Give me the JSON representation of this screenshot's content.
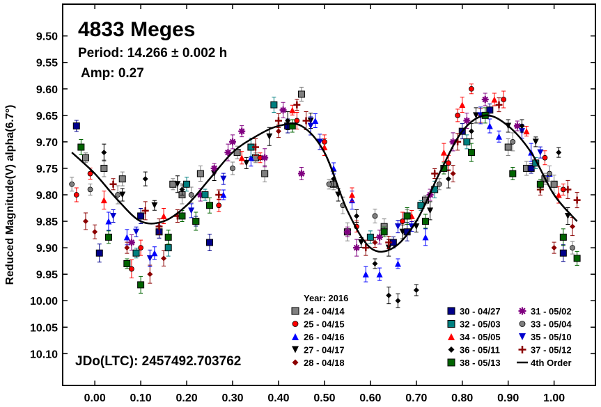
{
  "chart_data": {
    "type": "scatter",
    "title": "4833 Meges",
    "period_text": "Period: 14.266 ± 0.002 h",
    "amp_text": "Amp: 0.27",
    "jdo_text": "JDo(LTC): 2457492.703762",
    "legend_title": "Year: 2016",
    "ylabel": "Reduced Magnitude(V) alpha(6.7°)",
    "xlabel": "",
    "xlim": [
      -0.07,
      1.09
    ],
    "ylim": [
      10.16,
      9.44
    ],
    "y_inverted": true,
    "grid": false,
    "legend_placement": "bottom",
    "x_ticks": [
      "0.00",
      "0.10",
      "0.20",
      "0.30",
      "0.40",
      "0.50",
      "0.60",
      "0.70",
      "0.80",
      "0.90",
      "1.00"
    ],
    "x_tick_values": [
      0.0,
      0.1,
      0.2,
      0.3,
      0.4,
      0.5,
      0.6,
      0.7,
      0.8,
      0.9,
      1.0
    ],
    "y_ticks": [
      "9.50",
      "9.55",
      "9.60",
      "9.65",
      "9.70",
      "9.75",
      "9.80",
      "9.85",
      "9.90",
      "9.95",
      "10.00",
      "10.05",
      "10.10"
    ],
    "y_tick_values": [
      9.5,
      9.55,
      9.6,
      9.65,
      9.7,
      9.75,
      9.8,
      9.85,
      9.9,
      9.95,
      10.0,
      10.05,
      10.1
    ],
    "fit": {
      "name": "4th Order",
      "color": "#000000",
      "x": [
        -0.05,
        0.0,
        0.05,
        0.1,
        0.15,
        0.2,
        0.25,
        0.3,
        0.35,
        0.4,
        0.45,
        0.5,
        0.55,
        0.6,
        0.65,
        0.7,
        0.75,
        0.8,
        0.85,
        0.9,
        0.95,
        1.0,
        1.05
      ],
      "y": [
        9.72,
        9.76,
        9.81,
        9.85,
        9.85,
        9.82,
        9.77,
        9.72,
        9.69,
        9.67,
        9.67,
        9.72,
        9.83,
        9.9,
        9.9,
        9.85,
        9.76,
        9.68,
        9.65,
        9.67,
        9.72,
        9.8,
        9.85
      ]
    },
    "series": [
      {
        "name": "24 - 04/14",
        "marker": "square",
        "color": "#808080",
        "size": 9,
        "x": [
          -0.02,
          0.02,
          0.06,
          0.17,
          0.19,
          0.23,
          0.31,
          0.35,
          0.37,
          0.45,
          0.52,
          0.55,
          0.63,
          0.68,
          0.72,
          0.9,
          0.94,
          0.98,
          1.0
        ],
        "y": [
          9.73,
          9.75,
          9.77,
          9.78,
          9.8,
          9.76,
          9.72,
          9.73,
          9.76,
          9.61,
          9.78,
          9.87,
          9.86,
          9.84,
          9.81,
          9.71,
          9.75,
          9.77,
          9.78
        ]
      },
      {
        "name": "25 - 04/15",
        "marker": "circle",
        "color": "#ff0000",
        "size": 7,
        "x": [
          -0.04,
          -0.01,
          0.08,
          0.1,
          0.27,
          0.36,
          0.44,
          0.5,
          0.57,
          0.67,
          0.77,
          0.79,
          0.82,
          0.89,
          0.98,
          1.02
        ],
        "y": [
          9.8,
          9.76,
          9.94,
          9.9,
          9.82,
          9.73,
          9.66,
          9.7,
          9.86,
          9.85,
          9.74,
          9.65,
          9.6,
          9.62,
          9.73,
          9.79
        ]
      },
      {
        "name": "26 - 04/16",
        "marker": "triangle-up",
        "color": "#0000ff",
        "size": 9,
        "x": [
          0.03,
          0.07,
          0.13,
          0.28,
          0.34,
          0.48,
          0.52,
          0.56,
          0.59,
          0.62,
          0.66,
          0.72,
          0.86,
          0.88,
          0.95,
          0.99
        ],
        "y": [
          9.85,
          9.88,
          9.91,
          9.8,
          9.73,
          9.66,
          9.75,
          9.81,
          9.95,
          9.95,
          9.93,
          9.88,
          9.67,
          9.69,
          9.72,
          9.76
        ]
      },
      {
        "name": "27 - 04/17",
        "marker": "triangle-down",
        "color": "#000000",
        "size": 9,
        "x": [
          0.06,
          0.13,
          0.18,
          0.26,
          0.33,
          0.38,
          0.47,
          0.53,
          0.58,
          0.64,
          0.67,
          0.7,
          0.73,
          0.83,
          0.9,
          0.96,
          1.03
        ],
        "y": [
          9.8,
          9.82,
          9.78,
          9.76,
          9.74,
          9.69,
          9.66,
          9.8,
          9.89,
          9.9,
          9.87,
          9.86,
          9.83,
          9.65,
          9.67,
          9.7,
          9.84
        ]
      },
      {
        "name": "28 - 04/18",
        "marker": "diamond",
        "color": "#8b0000",
        "size": 8,
        "x": [
          -0.02,
          0.0,
          0.07,
          0.12,
          0.15,
          0.4,
          0.61,
          0.78,
          0.84,
          1.0,
          1.04
        ],
        "y": [
          9.85,
          9.87,
          9.9,
          9.95,
          9.92,
          9.68,
          9.89,
          9.76,
          9.65,
          9.9,
          9.86
        ]
      },
      {
        "name": "30 - 04/27",
        "marker": "square",
        "color": "#00008b",
        "size": 9,
        "x": [
          -0.04,
          0.01,
          0.1,
          0.14,
          0.22,
          0.25,
          0.42,
          0.65,
          0.68,
          0.8,
          0.86,
          0.95,
          1.02
        ],
        "y": [
          9.67,
          9.91,
          9.84,
          9.87,
          9.85,
          9.89,
          9.67,
          9.89,
          9.87,
          9.68,
          9.64,
          9.75,
          9.91
        ]
      },
      {
        "name": "31 - 05/02",
        "marker": "asterisk",
        "color": "#800080",
        "size": 10,
        "x": [
          0.08,
          0.23,
          0.26,
          0.29,
          0.3,
          0.32,
          0.37,
          0.41,
          0.45,
          0.55,
          0.57,
          0.62,
          0.73,
          0.78,
          0.81,
          0.85,
          0.92
        ],
        "y": [
          9.89,
          9.8,
          9.75,
          9.72,
          9.7,
          9.68,
          9.73,
          9.64,
          9.76,
          9.87,
          9.9,
          9.88,
          9.8,
          9.7,
          9.66,
          9.62,
          9.67
        ]
      },
      {
        "name": "32 - 05/03",
        "marker": "square",
        "color": "#008080",
        "size": 9,
        "x": [
          0.09,
          0.16,
          0.2,
          0.24,
          0.34,
          0.39,
          0.6,
          0.71,
          0.74,
          0.81,
          0.96
        ],
        "y": [
          9.91,
          9.9,
          9.78,
          9.8,
          9.71,
          9.63,
          9.88,
          9.82,
          9.79,
          9.7,
          9.74
        ]
      },
      {
        "name": "33 - 05/04",
        "marker": "circle",
        "color": "#808080",
        "size": 7,
        "x": [
          -0.05,
          -0.01,
          0.05,
          0.21,
          0.3,
          0.51,
          0.54,
          0.61,
          0.75,
          0.91,
          0.99,
          1.04
        ],
        "y": [
          9.78,
          9.79,
          9.8,
          9.8,
          9.75,
          9.78,
          9.82,
          9.84,
          9.78,
          9.7,
          9.76,
          9.9
        ]
      },
      {
        "name": "34 - 05/05",
        "marker": "triangle-up",
        "color": "#ff0000",
        "size": 9,
        "x": [
          0.02,
          0.15,
          0.32,
          0.43,
          0.5,
          0.56,
          0.69,
          0.76,
          0.8,
          0.87,
          0.94,
          1.01
        ],
        "y": [
          9.81,
          9.84,
          9.73,
          9.64,
          9.71,
          9.8,
          9.84,
          9.72,
          9.63,
          9.62,
          9.68,
          9.8
        ]
      },
      {
        "name": "35 - 05/10",
        "marker": "triangle-down",
        "color": "#0000cd",
        "size": 9,
        "x": [
          0.04,
          0.09,
          0.12,
          0.21,
          0.28,
          0.47,
          0.49,
          0.66,
          0.69,
          0.84,
          0.93,
          0.97
        ],
        "y": [
          9.84,
          9.87,
          9.92,
          9.83,
          9.77,
          9.67,
          9.7,
          9.86,
          9.86,
          9.65,
          9.68,
          9.72
        ]
      },
      {
        "name": "36 - 05/11",
        "marker": "diamond",
        "color": "#000000",
        "size": 8,
        "x": [
          0.02,
          0.11,
          0.19,
          0.42,
          0.52,
          0.57,
          0.61,
          0.64,
          0.66,
          0.7,
          0.77,
          0.82,
          0.93,
          1.01
        ],
        "y": [
          9.72,
          9.77,
          9.79,
          9.66,
          9.77,
          9.84,
          9.93,
          9.99,
          10.0,
          9.98,
          9.77,
          9.68,
          9.67,
          9.72
        ]
      },
      {
        "name": "37 - 05/12",
        "marker": "plus",
        "color": "#8b0000",
        "size": 10,
        "x": [
          0.04,
          0.11,
          0.14,
          0.18,
          0.27,
          0.35,
          0.4,
          0.44,
          0.46,
          0.59,
          0.64,
          0.74,
          0.79,
          0.88,
          0.97,
          1.03,
          1.05
        ],
        "y": [
          9.78,
          9.83,
          9.86,
          9.84,
          9.8,
          9.71,
          9.66,
          9.63,
          9.66,
          9.9,
          9.89,
          9.76,
          9.7,
          9.63,
          9.79,
          9.79,
          9.81
        ]
      },
      {
        "name": "38 - 05/13",
        "marker": "square",
        "color": "#006400",
        "size": 9,
        "x": [
          -0.03,
          0.03,
          0.07,
          0.1,
          0.16,
          0.19,
          0.22,
          0.25,
          0.43,
          0.63,
          0.68,
          0.72,
          0.76,
          0.82,
          0.85,
          0.91,
          0.97,
          1.02,
          1.05
        ],
        "y": [
          9.71,
          9.88,
          9.93,
          9.97,
          9.88,
          9.84,
          9.85,
          9.82,
          9.67,
          9.87,
          9.84,
          9.85,
          9.75,
          9.72,
          9.65,
          9.76,
          9.78,
          9.88,
          9.92
        ]
      }
    ]
  }
}
